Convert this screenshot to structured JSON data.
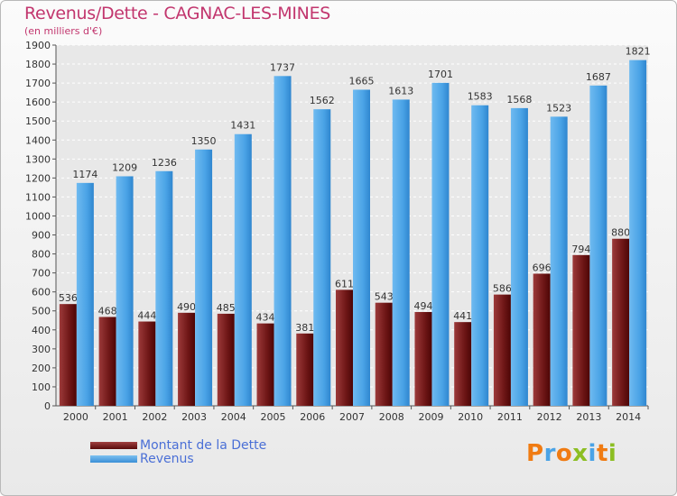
{
  "header": {
    "title": "Revenus/Dette - CAGNAC-LES-MINES",
    "subtitle": "(en milliers d'€)"
  },
  "colors": {
    "title": "#c2366e",
    "dette": "#7a1e1e",
    "revenus": "#4aa3e6",
    "legend_text": "#4a6fd6"
  },
  "legend": {
    "items": [
      {
        "label": "Montant de la Dette",
        "color": "#7a1e1e"
      },
      {
        "label": "Revenus",
        "color": "#4aa3e6"
      }
    ]
  },
  "logo": {
    "letters": [
      "P",
      "r",
      "o",
      "x",
      "i",
      "t",
      "i"
    ],
    "colors": [
      "#f07b12",
      "#4aa3e6",
      "#f07b12",
      "#8cbe22",
      "#4aa3e6",
      "#f07b12",
      "#8cbe22"
    ]
  },
  "chart_data": {
    "type": "bar",
    "title": "Revenus/Dette - CAGNAC-LES-MINES",
    "subtitle": "(en milliers d'€)",
    "categories": [
      "2000",
      "2001",
      "2002",
      "2003",
      "2004",
      "2005",
      "2006",
      "2007",
      "2008",
      "2009",
      "2010",
      "2011",
      "2012",
      "2013",
      "2014"
    ],
    "series": [
      {
        "name": "Montant de la Dette",
        "values": [
          536,
          468,
          444,
          490,
          485,
          434,
          381,
          611,
          543,
          494,
          441,
          586,
          696,
          794,
          880
        ]
      },
      {
        "name": "Revenus",
        "values": [
          1174,
          1209,
          1236,
          1350,
          1431,
          1737,
          1562,
          1665,
          1613,
          1701,
          1583,
          1568,
          1523,
          1687,
          1821
        ]
      }
    ],
    "ylim": [
      0,
      1900
    ],
    "ytick_step": 100,
    "grid": true,
    "legend_position": "bottom-left"
  }
}
